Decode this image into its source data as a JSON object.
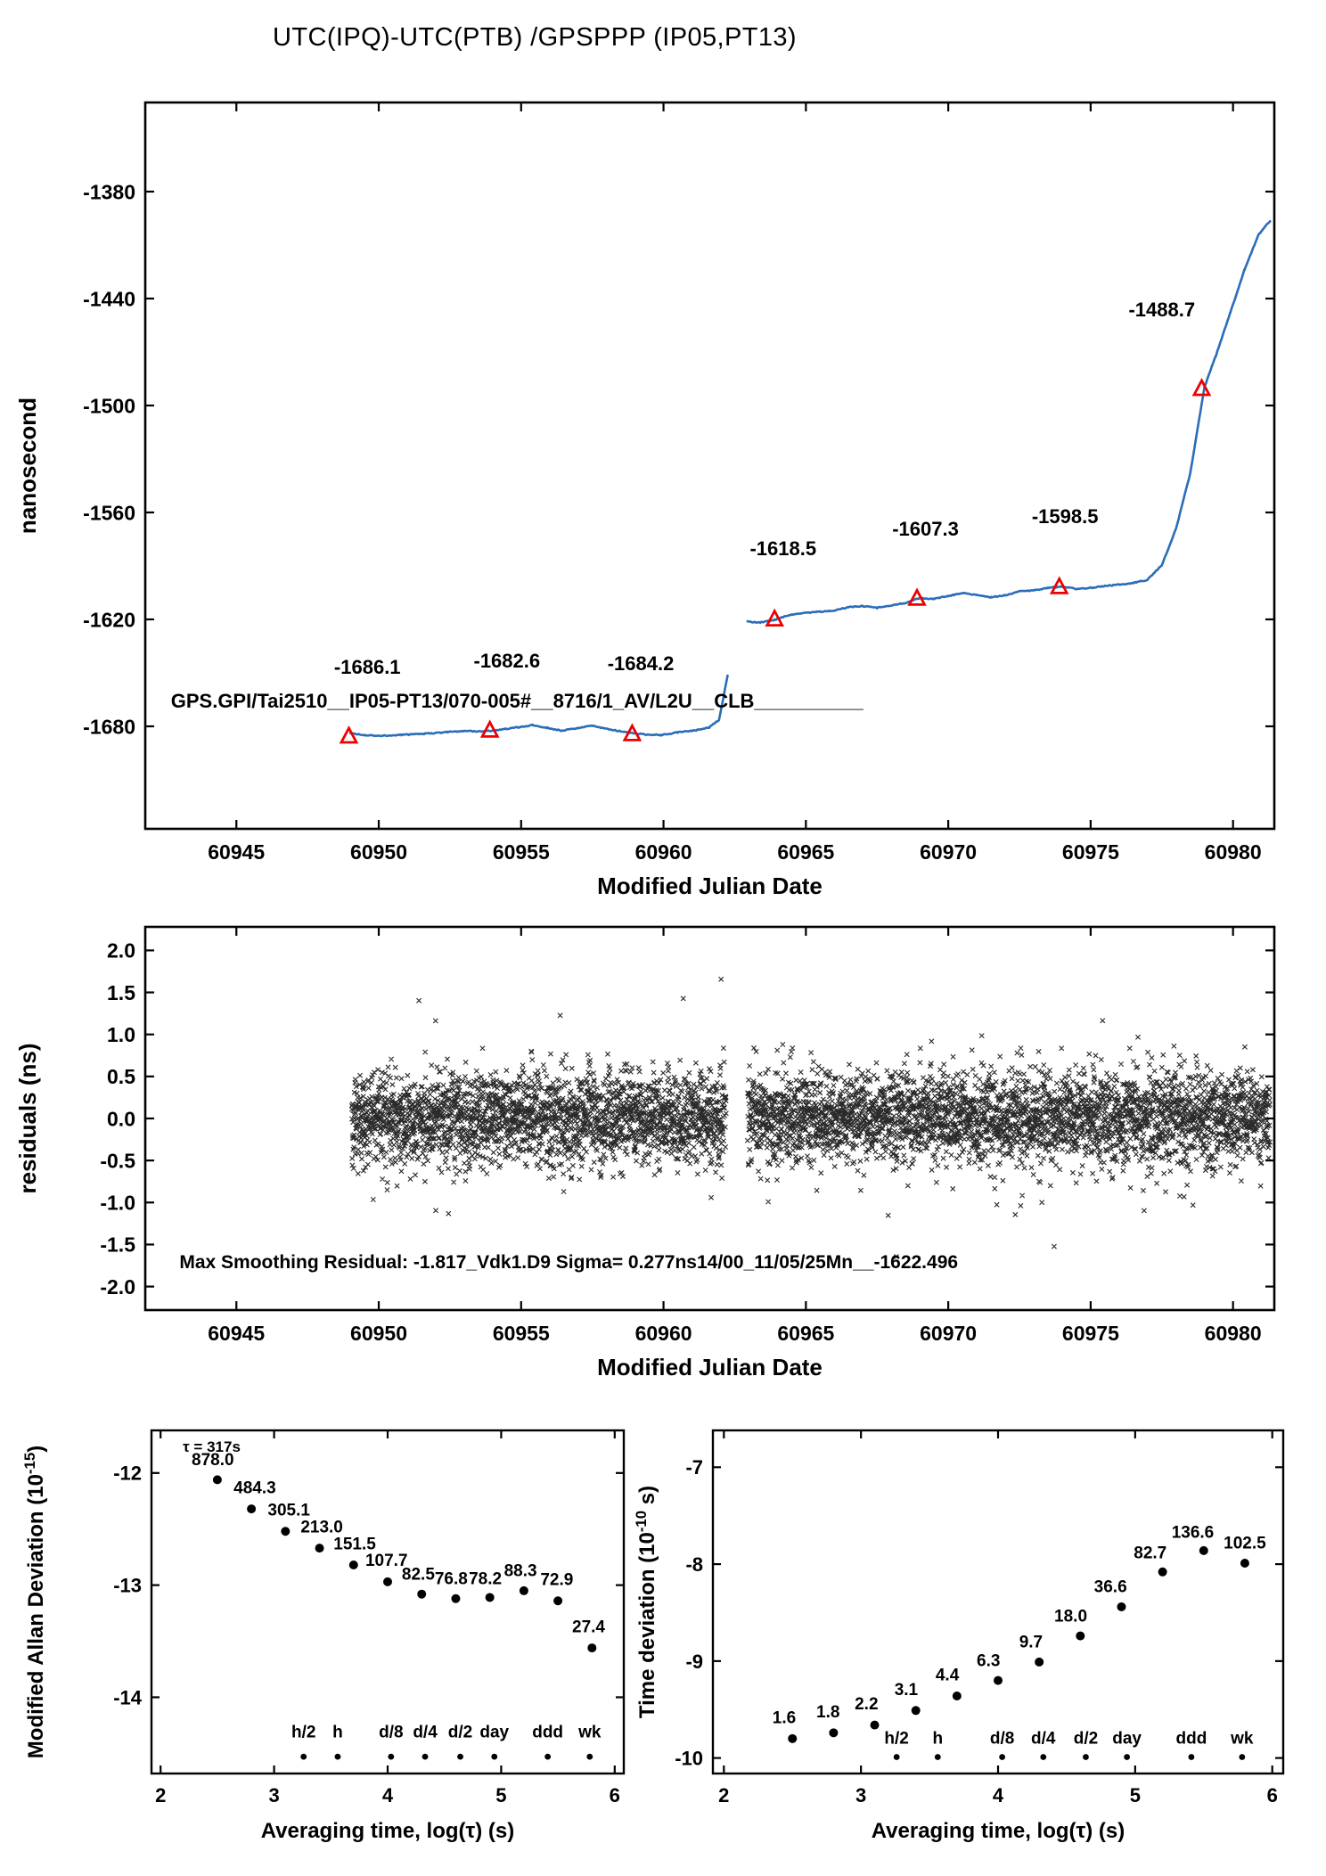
{
  "page": {
    "title": "UTC(IPQ)-UTC(PTB)  /GPSPPP  (IP05,PT13)"
  },
  "colors": {
    "curve": "#2a6db8",
    "accent": "#ee0000",
    "ink": "#000000"
  },
  "chart_data": [
    {
      "id": "phase",
      "type": "line",
      "title": "UTC(IPQ)-UTC(PTB)  /GPSPPP  (IP05,PT13)",
      "xlabel": "Modified Julian Date",
      "ylabel": "nanosecond",
      "xlim": [
        60941.8,
        60981.45
      ],
      "ylim": [
        -1737.5,
        -1330.0
      ],
      "xtick_vals": [
        60945,
        60950,
        60955,
        60960,
        60965,
        60970,
        60975,
        60980
      ],
      "xtick_labels": [
        "60945",
        "60950",
        "60955",
        "60960",
        "60965",
        "60970",
        "60975",
        "60980"
      ],
      "ytick_vals": [
        -1680,
        -1620,
        -1560,
        -1500,
        -1440,
        -1380
      ],
      "ytick_labels": [
        "-1680",
        "-1620",
        "-1560",
        "-1500",
        "-1440",
        "-1380"
      ],
      "segments": [
        [
          [
            60949.0,
            -1683.8
          ],
          [
            60949.5,
            -1685.0
          ],
          [
            60950.1,
            -1685.3
          ],
          [
            60950.8,
            -1684.8
          ],
          [
            60951.6,
            -1684.2
          ],
          [
            60952.4,
            -1683.2
          ],
          [
            60953.0,
            -1682.6
          ],
          [
            60953.7,
            -1682.9
          ],
          [
            60954.3,
            -1681.8
          ],
          [
            60954.9,
            -1680.5
          ],
          [
            60955.4,
            -1679.3
          ],
          [
            60955.9,
            -1680.9
          ],
          [
            60956.4,
            -1682.4
          ],
          [
            60957.0,
            -1681.1
          ],
          [
            60957.5,
            -1679.7
          ],
          [
            60958.1,
            -1681.7
          ],
          [
            60958.7,
            -1683.3
          ],
          [
            60959.3,
            -1684.5
          ],
          [
            60959.9,
            -1684.9
          ],
          [
            60960.5,
            -1683.4
          ],
          [
            60961.1,
            -1682.3
          ],
          [
            60961.6,
            -1680.6
          ],
          [
            60961.95,
            -1676.5
          ],
          [
            60962.25,
            -1651.5
          ]
        ],
        [
          [
            60962.95,
            -1621.3
          ],
          [
            60963.4,
            -1621.7
          ],
          [
            60963.9,
            -1620.3
          ],
          [
            60964.4,
            -1617.6
          ],
          [
            60964.9,
            -1616.4
          ],
          [
            60965.5,
            -1615.7
          ],
          [
            60966.0,
            -1614.9
          ],
          [
            60966.5,
            -1613.2
          ],
          [
            60967.0,
            -1612.5
          ],
          [
            60967.5,
            -1613.5
          ],
          [
            60968.0,
            -1612.3
          ],
          [
            60968.5,
            -1610.7
          ],
          [
            60969.0,
            -1608.0
          ],
          [
            60969.5,
            -1608.6
          ],
          [
            60970.0,
            -1606.8
          ],
          [
            60970.5,
            -1605.3
          ],
          [
            60971.0,
            -1606.3
          ],
          [
            60971.5,
            -1607.6
          ],
          [
            60972.0,
            -1606.5
          ],
          [
            60972.5,
            -1604.3
          ],
          [
            60973.0,
            -1603.7
          ],
          [
            60973.5,
            -1602.3
          ],
          [
            60974.0,
            -1601.5
          ],
          [
            60974.5,
            -1602.9
          ],
          [
            60975.0,
            -1602.3
          ],
          [
            60975.5,
            -1601.3
          ],
          [
            60976.0,
            -1600.5
          ],
          [
            60976.5,
            -1599.5
          ],
          [
            60977.0,
            -1597.8
          ],
          [
            60977.5,
            -1589.5
          ],
          [
            60978.0,
            -1569.0
          ],
          [
            60978.5,
            -1538.0
          ],
          [
            60979.0,
            -1489.5
          ],
          [
            60979.4,
            -1472.0
          ],
          [
            60979.9,
            -1448.0
          ],
          [
            60980.4,
            -1424.0
          ],
          [
            60980.9,
            -1404.0
          ],
          [
            60981.3,
            -1396.5
          ]
        ]
      ],
      "calibration_markers": [
        {
          "x": 60948.95,
          "y": -1685.5,
          "label": "-1686.1",
          "lx": 60949.6,
          "ly": -1650.5
        },
        {
          "x": 60953.9,
          "y": -1682.2,
          "label": "-1682.6",
          "lx": 60954.5,
          "ly": -1647.0
        },
        {
          "x": 60958.9,
          "y": -1684.2,
          "label": "-1684.2",
          "lx": 60959.2,
          "ly": -1648.5
        },
        {
          "x": 60963.9,
          "y": -1619.8,
          "label": "-1618.5",
          "lx": 60964.2,
          "ly": -1584.0
        },
        {
          "x": 60968.9,
          "y": -1608.2,
          "label": "-1607.3",
          "lx": 60969.2,
          "ly": -1573.0
        },
        {
          "x": 60973.9,
          "y": -1601.7,
          "label": "-1598.5",
          "lx": 60974.1,
          "ly": -1566.0
        },
        {
          "x": 60978.9,
          "y": -1490.5,
          "label": "-1488.7",
          "lx": 60977.5,
          "ly": -1450.0
        }
      ],
      "annotation": {
        "text": "GPS.GPI/Tai2510__IP05-PT13/070-005#__8716/1_AV/L2U__CLB__________",
        "x": 60942.7,
        "y": -1669.5
      }
    },
    {
      "id": "residuals",
      "type": "scatter",
      "xlabel": "Modified Julian Date",
      "ylabel": "residuals (ns)",
      "xlim": [
        60941.8,
        60981.45
      ],
      "ylim": [
        -2.28,
        2.28
      ],
      "xtick_vals": [
        60945,
        60950,
        60955,
        60960,
        60965,
        60970,
        60975,
        60980
      ],
      "xtick_labels": [
        "60945",
        "60950",
        "60955",
        "60960",
        "60965",
        "60970",
        "60975",
        "60980"
      ],
      "ytick_vals": [
        2.0,
        1.5,
        1.0,
        0.5,
        0.0,
        -0.5,
        -1.0,
        -1.5,
        -2.0
      ],
      "ytick_labels": [
        "2.0",
        "1.5",
        "1.0",
        "0.5",
        "0.0",
        "-0.5",
        "-1.0",
        "-1.5",
        "-2.0"
      ],
      "scatter": {
        "x_start": 60949.05,
        "x_end": 60981.3,
        "gap_start": 60962.2,
        "gap_end": 60962.95,
        "n_points": 6000,
        "sigma": 0.27,
        "outlier_frac": 0.05,
        "outlier_sigma": 0.52,
        "clip": 1.85,
        "marker": "x"
      },
      "annotation": {
        "text": "Max Smoothing Residual: -1.817_Vdk1.D9  Sigma= 0.277ns14/00_11/05/25Mn__-1622.496",
        "x": 60943.0,
        "y": -1.78
      }
    },
    {
      "id": "mdev",
      "type": "scatter",
      "xlabel": "Averaging time, log(τ) (s)",
      "ylabel_pre": "Modified Allan Deviation (10",
      "ylabel_sup": "-15",
      "ylabel_post": ")",
      "xlim": [
        1.92,
        6.08
      ],
      "ylim": [
        -14.68,
        -11.62
      ],
      "xtick_vals": [
        2,
        3,
        4,
        5,
        6
      ],
      "xtick_labels": [
        "2",
        "3",
        "4",
        "5",
        "6"
      ],
      "ytick_vals": [
        -12,
        -13,
        -14
      ],
      "ytick_labels": [
        "-12",
        "-13",
        "-14"
      ],
      "points": [
        {
          "x": 2.5,
          "y": -12.06,
          "label": "878.0",
          "lx": 2.46,
          "ly": -11.93
        },
        {
          "x": 2.8,
          "y": -12.32,
          "label": "484.3",
          "lx": 2.83,
          "ly": -12.18
        },
        {
          "x": 3.1,
          "y": -12.52,
          "label": "305.1",
          "lx": 3.13,
          "ly": -12.38
        },
        {
          "x": 3.4,
          "y": -12.67,
          "label": "213.0",
          "lx": 3.42,
          "ly": -12.53
        },
        {
          "x": 3.7,
          "y": -12.82,
          "label": "151.5",
          "lx": 3.71,
          "ly": -12.68
        },
        {
          "x": 4.0,
          "y": -12.97,
          "label": "107.7",
          "lx": 3.99,
          "ly": -12.83
        },
        {
          "x": 4.3,
          "y": -13.08,
          "label": "82.5",
          "lx": 4.27,
          "ly": -12.95
        },
        {
          "x": 4.6,
          "y": -13.12,
          "label": "76.8",
          "lx": 4.56,
          "ly": -12.99
        },
        {
          "x": 4.9,
          "y": -13.11,
          "label": "78.2",
          "lx": 4.86,
          "ly": -12.99
        },
        {
          "x": 5.2,
          "y": -13.05,
          "label": "88.3",
          "lx": 5.17,
          "ly": -12.92
        },
        {
          "x": 5.5,
          "y": -13.14,
          "label": "72.9",
          "lx": 5.49,
          "ly": -13.0
        },
        {
          "x": 5.8,
          "y": -13.56,
          "label": "27.4",
          "lx": 5.77,
          "ly": -13.42
        }
      ],
      "note": {
        "text": "τ = 317s",
        "x": 2.45,
        "y": -11.81
      },
      "time_marks": {
        "dot_y": -14.53,
        "label_y": -14.36,
        "items": [
          {
            "x": 3.26,
            "label": "h/2"
          },
          {
            "x": 3.56,
            "label": "h"
          },
          {
            "x": 4.03,
            "label": "d/8"
          },
          {
            "x": 4.33,
            "label": "d/4"
          },
          {
            "x": 4.64,
            "label": "d/2"
          },
          {
            "x": 4.94,
            "label": "day"
          },
          {
            "x": 5.41,
            "label": "ddd"
          },
          {
            "x": 5.78,
            "label": "wk"
          }
        ]
      }
    },
    {
      "id": "tdev",
      "type": "scatter",
      "xlabel": "Averaging time, log(τ) (s)",
      "ylabel_pre": "Time deviation (10",
      "ylabel_sup": "-10",
      "ylabel_post": " s)",
      "xlim": [
        1.92,
        6.08
      ],
      "ylim": [
        -10.16,
        -6.62
      ],
      "xtick_vals": [
        2,
        3,
        4,
        5,
        6
      ],
      "xtick_labels": [
        "2",
        "3",
        "4",
        "5",
        "6"
      ],
      "ytick_vals": [
        -7,
        -8,
        -9,
        -10
      ],
      "ytick_labels": [
        "-7",
        "-8",
        "-9",
        "-10"
      ],
      "points": [
        {
          "x": 2.5,
          "y": -9.8,
          "label": "1.6",
          "lx": 2.44,
          "ly": -9.64
        },
        {
          "x": 2.8,
          "y": -9.74,
          "label": "1.8",
          "lx": 2.76,
          "ly": -9.58
        },
        {
          "x": 3.1,
          "y": -9.66,
          "label": "2.2",
          "lx": 3.04,
          "ly": -9.5
        },
        {
          "x": 3.4,
          "y": -9.51,
          "label": "3.1",
          "lx": 3.33,
          "ly": -9.35
        },
        {
          "x": 3.7,
          "y": -9.36,
          "label": "4.4",
          "lx": 3.63,
          "ly": -9.2
        },
        {
          "x": 4.0,
          "y": -9.2,
          "label": "6.3",
          "lx": 3.93,
          "ly": -9.05
        },
        {
          "x": 4.3,
          "y": -9.01,
          "label": "9.7",
          "lx": 4.24,
          "ly": -8.86
        },
        {
          "x": 4.6,
          "y": -8.74,
          "label": "18.0",
          "lx": 4.53,
          "ly": -8.59
        },
        {
          "x": 4.9,
          "y": -8.44,
          "label": "36.6",
          "lx": 4.82,
          "ly": -8.29
        },
        {
          "x": 5.2,
          "y": -8.08,
          "label": "82.7",
          "lx": 5.11,
          "ly": -7.94
        },
        {
          "x": 5.5,
          "y": -7.86,
          "label": "136.6",
          "lx": 5.42,
          "ly": -7.73
        },
        {
          "x": 5.8,
          "y": -7.99,
          "label": "102.5",
          "lx": 5.8,
          "ly": -7.84
        }
      ],
      "time_marks": {
        "dot_y": -9.99,
        "label_y": -9.85,
        "items": [
          {
            "x": 3.26,
            "label": "h/2"
          },
          {
            "x": 3.56,
            "label": "h"
          },
          {
            "x": 4.03,
            "label": "d/8"
          },
          {
            "x": 4.33,
            "label": "d/4"
          },
          {
            "x": 4.64,
            "label": "d/2"
          },
          {
            "x": 4.94,
            "label": "day"
          },
          {
            "x": 5.41,
            "label": "ddd"
          },
          {
            "x": 5.78,
            "label": "wk"
          }
        ]
      }
    }
  ]
}
